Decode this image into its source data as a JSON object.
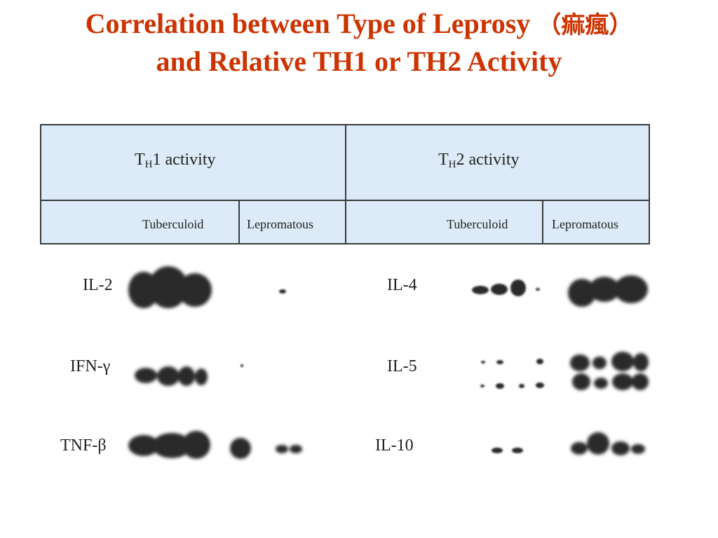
{
  "title": {
    "line1": "Correlation between Type of Leprosy",
    "line1_chinese": "（痲瘋）",
    "line2": "and Relative TH1 or TH2 Activity"
  },
  "table": {
    "th1": {
      "main": "T",
      "sub": "H",
      "rest": "1 activity"
    },
    "th2": {
      "main": "T",
      "sub": "H",
      "rest": "2 activity"
    },
    "th1_cols": [
      "Tuberculoid",
      "Lepromatous"
    ],
    "th2_cols": [
      "Tuberculoid",
      "Lepromatous"
    ]
  },
  "rows_th1": [
    "IL-2",
    "IFN-γ",
    "TNF-β"
  ],
  "rows_th2": [
    "IL-4",
    "IL-5",
    "IL-10"
  ],
  "colors": {
    "title": "#cc3300",
    "header_fill": "#dcebf7",
    "blot": "#2b2b2b"
  }
}
